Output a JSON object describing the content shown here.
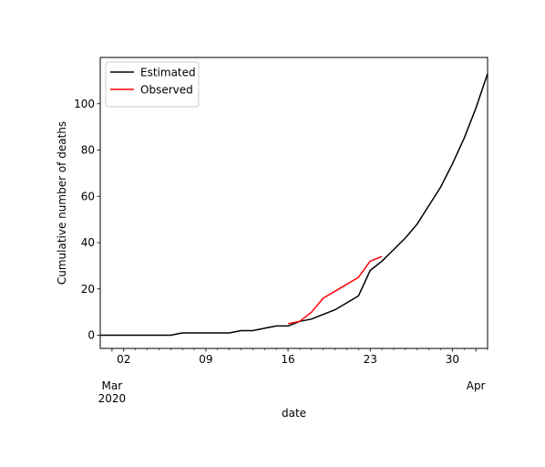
{
  "chart_data": {
    "type": "line",
    "title": "",
    "xlabel": "date",
    "ylabel": "Cumulative number of deaths",
    "xlim": [
      "2020-02-29",
      "2020-04-02"
    ],
    "ylim": [
      -5.7,
      120
    ],
    "grid": false,
    "legend_position": "top-left",
    "x_major_ticks": [
      {
        "date": "2020-03-02",
        "label": "02"
      },
      {
        "date": "2020-03-09",
        "label": "09"
      },
      {
        "date": "2020-03-16",
        "label": "16"
      },
      {
        "date": "2020-03-23",
        "label": "23"
      },
      {
        "date": "2020-03-30",
        "label": "30"
      }
    ],
    "x_month_ticks": [
      {
        "date": "2020-03-01",
        "label": "Mar",
        "sublabel": "2020"
      },
      {
        "date": "2020-04-01",
        "label": "Apr",
        "sublabel": ""
      }
    ],
    "y_ticks": [
      0,
      20,
      40,
      60,
      80,
      100
    ],
    "series": [
      {
        "name": "Estimated",
        "color": "#000000",
        "x": [
          "2020-02-29",
          "2020-03-01",
          "2020-03-02",
          "2020-03-03",
          "2020-03-04",
          "2020-03-05",
          "2020-03-06",
          "2020-03-07",
          "2020-03-08",
          "2020-03-09",
          "2020-03-10",
          "2020-03-11",
          "2020-03-12",
          "2020-03-13",
          "2020-03-14",
          "2020-03-15",
          "2020-03-16",
          "2020-03-17",
          "2020-03-18",
          "2020-03-19",
          "2020-03-20",
          "2020-03-21",
          "2020-03-22",
          "2020-03-23",
          "2020-03-24",
          "2020-03-25",
          "2020-03-26",
          "2020-03-27",
          "2020-03-28",
          "2020-03-29",
          "2020-03-30",
          "2020-03-31",
          "2020-04-01",
          "2020-04-02"
        ],
        "y": [
          0,
          0,
          0,
          0,
          0,
          0,
          0,
          1,
          1,
          1,
          1,
          1,
          2,
          2,
          3,
          4,
          4,
          6,
          7,
          9,
          11,
          14,
          17,
          28,
          32,
          37,
          42,
          48,
          56,
          64,
          74,
          85,
          98,
          113
        ]
      },
      {
        "name": "Observed",
        "color": "#ff0000",
        "x": [
          "2020-03-16",
          "2020-03-17",
          "2020-03-18",
          "2020-03-19",
          "2020-03-20",
          "2020-03-21",
          "2020-03-22",
          "2020-03-23",
          "2020-03-24"
        ],
        "y": [
          5,
          6,
          10,
          16,
          19,
          22,
          25,
          32,
          34
        ]
      }
    ]
  }
}
